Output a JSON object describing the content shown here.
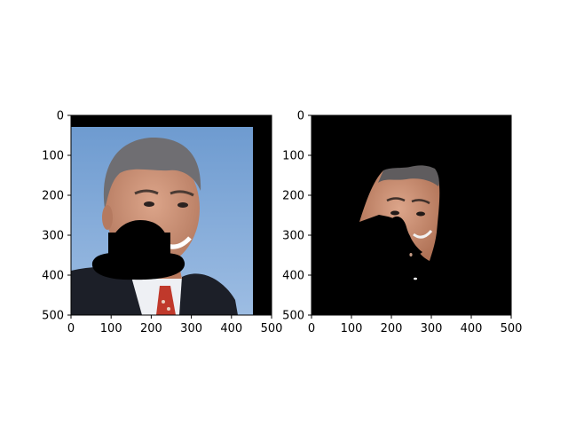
{
  "figure": {
    "panels": [
      {
        "name": "left-photo-panel",
        "content": "portrait-with-black-hat-mask",
        "x_ticks": [
          "0",
          "100",
          "200",
          "300",
          "400",
          "500"
        ],
        "y_ticks": [
          "0",
          "100",
          "200",
          "300",
          "400",
          "500"
        ],
        "x_range": [
          0,
          500
        ],
        "y_range": [
          0,
          500
        ],
        "y_inverted": true
      },
      {
        "name": "right-photo-panel",
        "content": "face-segmentation-on-black",
        "x_ticks": [
          "0",
          "100",
          "200",
          "300",
          "400",
          "500"
        ],
        "y_ticks": [
          "0",
          "100",
          "200",
          "300",
          "400",
          "500"
        ],
        "x_range": [
          0,
          500
        ],
        "y_range": [
          0,
          500
        ],
        "y_inverted": true
      }
    ],
    "colors": {
      "background_blue": "#7ea7d6",
      "mask_black": "#000000",
      "suit_dark": "#1c1f28",
      "shirt_white": "#eef0f4",
      "tie_red": "#c0392b",
      "skin": "#c99075",
      "hair_gray": "#6f6e72"
    }
  }
}
